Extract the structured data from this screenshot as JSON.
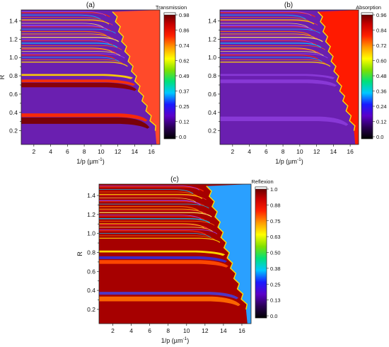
{
  "chart_data": [
    {
      "type": "heatmap",
      "panel_label": "(a)",
      "title": "Transmission",
      "xlabel": "1/p (µm",
      "xlabel_exponent": "-1",
      "xlabel_close": ")",
      "ylabel": "R",
      "xlim": [
        0.5,
        17
      ],
      "ylim": [
        0.05,
        1.52
      ],
      "x_ticks": [
        2,
        4,
        6,
        8,
        10,
        12,
        14,
        16
      ],
      "y_ticks": [
        0.2,
        0.3,
        0.4,
        0.5,
        0.6,
        0.7,
        0.8,
        0.9,
        1.0,
        1.1,
        1.2,
        1.3,
        1.4
      ],
      "y_tick_labels": [
        "0.2",
        "",
        "0.4",
        "",
        "0.6",
        "",
        "0.8",
        "",
        "1.0",
        "",
        "1.2",
        "",
        "1.4"
      ],
      "colorbar_ticks": [
        "0.98",
        "0.86",
        "0.74",
        "0.62",
        "0.49",
        "0.37",
        "0.25",
        "0.12",
        "0.0"
      ],
      "colormap": [
        "#000000",
        "#2a0055",
        "#5b00c8",
        "#1a1aff",
        "#00c8ff",
        "#00e07a",
        "#7fe000",
        "#ffff00",
        "#ff9a00",
        "#ff2000",
        "#c80000",
        "#560000"
      ],
      "background_color": "#6a1fb0",
      "edge_color": "#ff4a2a",
      "edge": {
        "r": [
          0.2,
          1.5
        ],
        "x": [
          16.6,
          11.5
        ]
      },
      "bright_bands": [
        {
          "r": 0.31,
          "color": "#7a0000",
          "width": 0.07
        },
        {
          "r": 0.37,
          "color": "#ff2a00",
          "width": 0.04
        },
        {
          "r": 0.7,
          "color": "#8a0000",
          "width": 0.05
        },
        {
          "r": 0.745,
          "color": "#ff3000",
          "width": 0.03
        },
        {
          "r": 0.81,
          "color": "#ffd400",
          "width": 0.02
        }
      ],
      "thin_lines_range": [
        0.95,
        1.5
      ]
    },
    {
      "type": "heatmap",
      "panel_label": "(b)",
      "title": "Absorption",
      "xlabel": "1/p (µm",
      "xlabel_exponent": "-1",
      "xlabel_close": ")",
      "ylabel": "",
      "xlim": [
        0.5,
        17
      ],
      "ylim": [
        0.05,
        1.52
      ],
      "x_ticks": [
        2,
        4,
        6,
        8,
        10,
        12,
        14,
        16
      ],
      "y_ticks": [
        0.2,
        0.3,
        0.4,
        0.5,
        0.6,
        0.7,
        0.8,
        0.9,
        1.0,
        1.1,
        1.2,
        1.3,
        1.4
      ],
      "y_tick_labels": [
        "0.2",
        "",
        "0.4",
        "",
        "0.6",
        "",
        "0.8",
        "",
        "1.0",
        "",
        "1.2",
        "",
        "1.4"
      ],
      "colorbar_ticks": [
        "0.96",
        "0.84",
        "0.72",
        "0.60",
        "0.48",
        "0.36",
        "0.24",
        "0.12",
        "0.0"
      ],
      "colormap": [
        "#000000",
        "#2a0055",
        "#5b00c8",
        "#1a1aff",
        "#00c8ff",
        "#00e07a",
        "#7fe000",
        "#ffff00",
        "#ff9a00",
        "#ff2000",
        "#c80000",
        "#560000"
      ],
      "background_color": "#6a1fb0",
      "edge_color": "#ff1a00",
      "edge": {
        "r": [
          0.2,
          1.5
        ],
        "x": [
          16.6,
          12.3
        ]
      },
      "bright_bands": [
        {
          "r": 0.33,
          "color": "#8a3ad8",
          "width": 0.05
        },
        {
          "r": 0.74,
          "color": "#8a3ad8",
          "width": 0.04
        },
        {
          "r": 0.81,
          "color": "#8a3ad8",
          "width": 0.02
        }
      ],
      "thin_lines_range": [
        0.95,
        1.5
      ]
    },
    {
      "type": "heatmap",
      "panel_label": "(c)",
      "title": "Reflexion",
      "xlabel": "1/p (µm",
      "xlabel_exponent": "-1",
      "xlabel_close": ")",
      "ylabel": "R",
      "xlim": [
        0.5,
        17
      ],
      "ylim": [
        0.05,
        1.52
      ],
      "x_ticks": [
        2,
        4,
        6,
        8,
        10,
        12,
        14,
        16
      ],
      "y_ticks": [
        0.2,
        0.3,
        0.4,
        0.5,
        0.6,
        0.7,
        0.8,
        0.9,
        1.0,
        1.1,
        1.2,
        1.3,
        1.4
      ],
      "y_tick_labels": [
        "0.2",
        "",
        "0.4",
        "",
        "0.6",
        "",
        "0.8",
        "",
        "1.0",
        "",
        "1.2",
        "",
        "1.4"
      ],
      "colorbar_ticks": [
        "1.0",
        "0.88",
        "0.75",
        "0.63",
        "0.50",
        "0.38",
        "0.25",
        "0.13",
        "0.0"
      ],
      "colormap": [
        "#000000",
        "#2a0055",
        "#5b00c8",
        "#1a1aff",
        "#00c8ff",
        "#00e07a",
        "#7fe000",
        "#ffff00",
        "#ff9a00",
        "#ff2000",
        "#c80000",
        "#560000"
      ],
      "background_color": "#a60000",
      "edge_color": "#2aa0ff",
      "edge": {
        "r": [
          0.2,
          1.5
        ],
        "x": [
          16.6,
          12.3
        ]
      },
      "bright_bands": [
        {
          "r": 0.31,
          "color": "#ff6a00",
          "width": 0.05
        },
        {
          "r": 0.37,
          "color": "#4a3acc",
          "width": 0.03
        },
        {
          "r": 0.7,
          "color": "#ff4a00",
          "width": 0.04
        },
        {
          "r": 0.745,
          "color": "#3a2acc",
          "width": 0.03
        },
        {
          "r": 0.81,
          "color": "#ffe000",
          "width": 0.02
        }
      ],
      "thin_lines_range": [
        0.95,
        1.5
      ]
    }
  ]
}
